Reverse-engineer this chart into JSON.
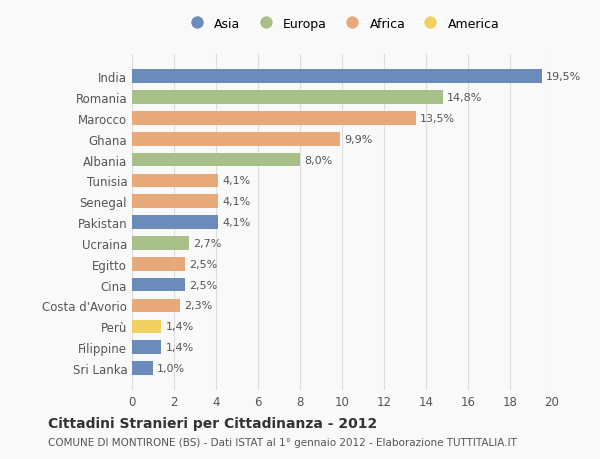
{
  "countries": [
    "India",
    "Romania",
    "Marocco",
    "Ghana",
    "Albania",
    "Tunisia",
    "Senegal",
    "Pakistan",
    "Ucraina",
    "Egitto",
    "Cina",
    "Costa d'Avorio",
    "Perù",
    "Filippine",
    "Sri Lanka"
  ],
  "values": [
    19.5,
    14.8,
    13.5,
    9.9,
    8.0,
    4.1,
    4.1,
    4.1,
    2.7,
    2.5,
    2.5,
    2.3,
    1.4,
    1.4,
    1.0
  ],
  "labels": [
    "19,5%",
    "14,8%",
    "13,5%",
    "9,9%",
    "8,0%",
    "4,1%",
    "4,1%",
    "4,1%",
    "2,7%",
    "2,5%",
    "2,5%",
    "2,3%",
    "1,4%",
    "1,4%",
    "1,0%"
  ],
  "continents": [
    "Asia",
    "Europa",
    "Africa",
    "Africa",
    "Europa",
    "Africa",
    "Africa",
    "Asia",
    "Europa",
    "Africa",
    "Asia",
    "Africa",
    "America",
    "Asia",
    "Asia"
  ],
  "continent_colors": {
    "Asia": "#6b8cba",
    "Europa": "#a8bf8a",
    "Africa": "#e8a97a",
    "America": "#f0d060"
  },
  "legend_order": [
    "Asia",
    "Europa",
    "Africa",
    "America"
  ],
  "title": "Cittadini Stranieri per Cittadinanza - 2012",
  "subtitle": "COMUNE DI MONTIRONE (BS) - Dati ISTAT al 1° gennaio 2012 - Elaborazione TUTTITALIA.IT",
  "xlim": [
    0,
    20
  ],
  "xticks": [
    0,
    2,
    4,
    6,
    8,
    10,
    12,
    14,
    16,
    18,
    20
  ],
  "background_color": "#f9f9f9",
  "grid_color": "#dddddd",
  "bar_height": 0.65
}
